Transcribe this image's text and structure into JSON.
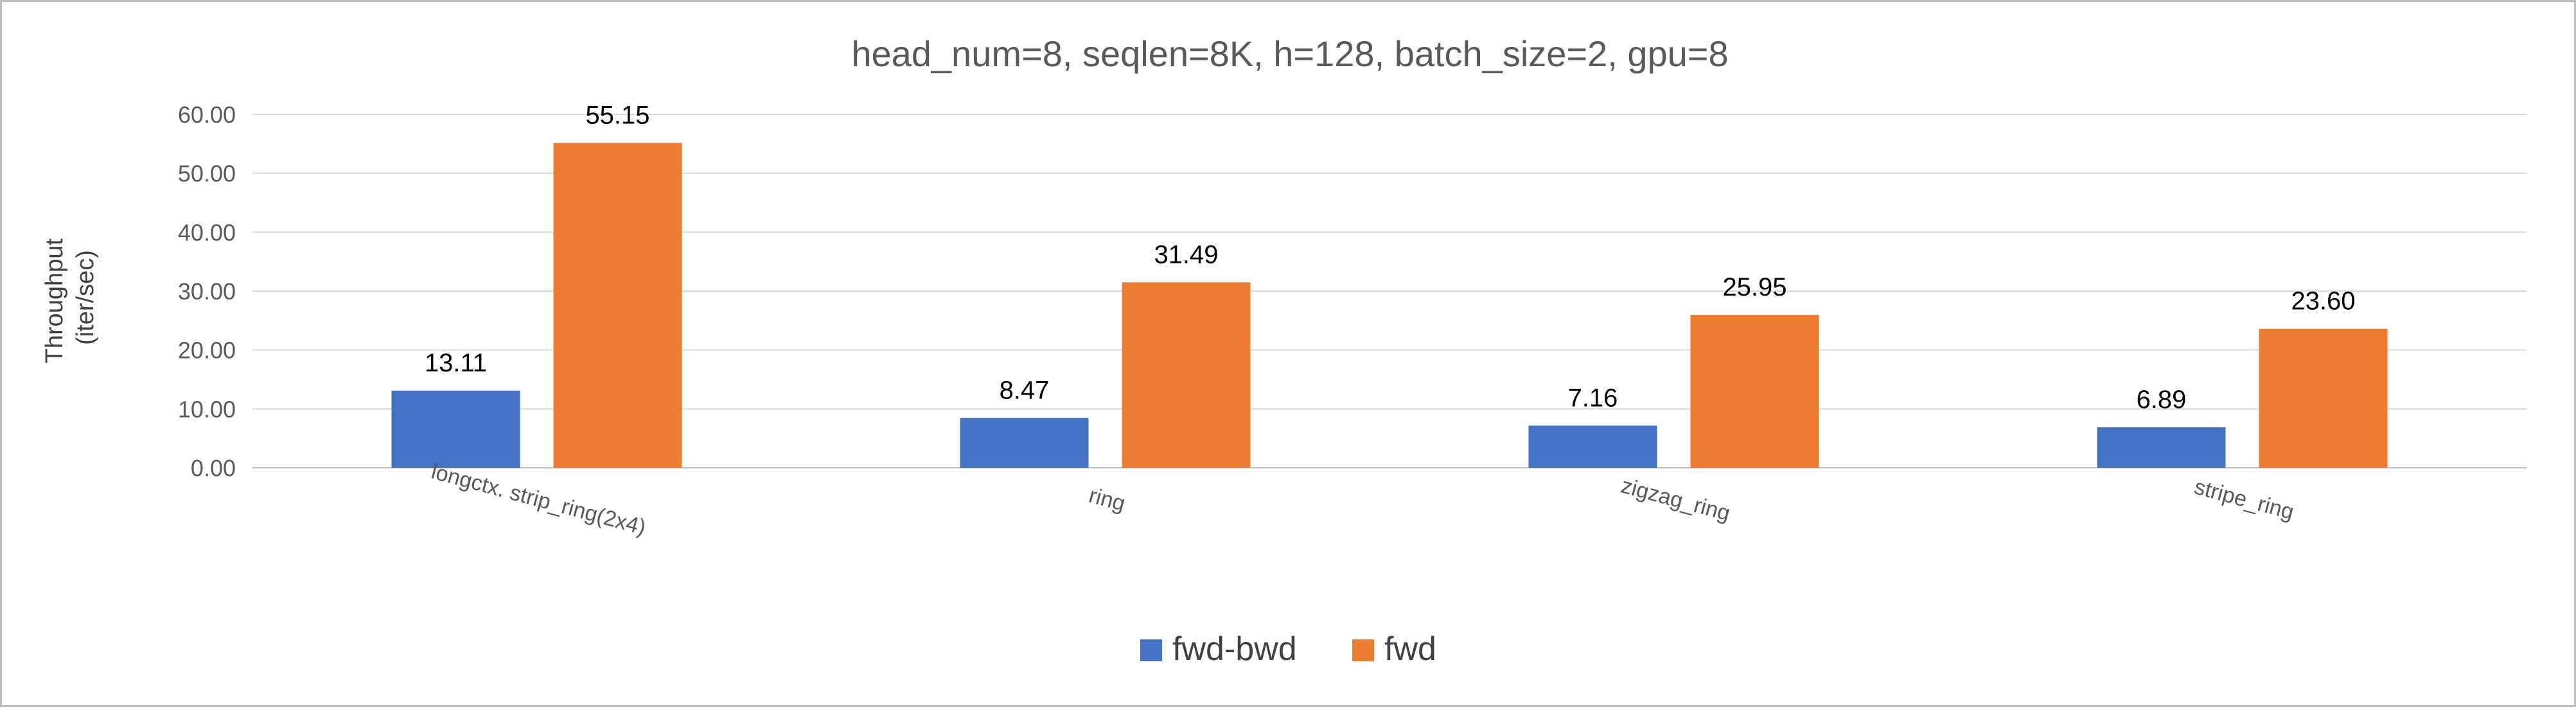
{
  "chart_data": {
    "type": "bar",
    "title": "head_num=8, seqlen=8K, h=128, batch_size=2, gpu=8",
    "xlabel": "",
    "ylabel_lines": [
      "Throughput",
      "(iter/sec)"
    ],
    "categories": [
      "longctx. strip_ring(2x4)",
      "ring",
      "zigzag_ring",
      "stripe_ring"
    ],
    "series": [
      {
        "name": "fwd-bwd",
        "color": "#4472C4",
        "values": [
          13.11,
          8.47,
          7.16,
          6.89
        ],
        "labels": [
          "13.11",
          "8.47",
          "7.16",
          "6.89"
        ]
      },
      {
        "name": "fwd",
        "color": "#ED7D31",
        "values": [
          55.15,
          31.49,
          25.95,
          23.6
        ],
        "labels": [
          "55.15",
          "31.49",
          "25.95",
          "23.60"
        ]
      }
    ],
    "ylim": [
      0,
      60
    ],
    "yticks": [
      0,
      10,
      20,
      30,
      40,
      50,
      60
    ],
    "ytick_labels": [
      "0.00",
      "10.00",
      "20.00",
      "30.00",
      "40.00",
      "50.00",
      "60.00"
    ],
    "grid": true,
    "legend_position": "bottom"
  }
}
